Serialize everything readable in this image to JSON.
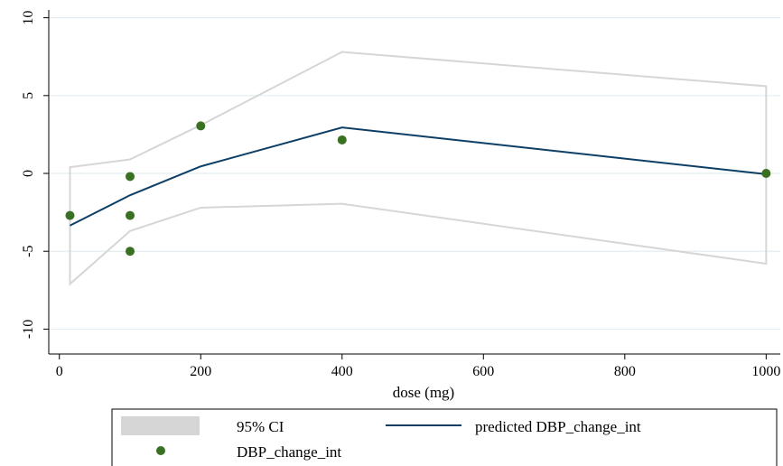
{
  "chart_data": {
    "type": "line",
    "xlabel": "dose (mg)",
    "ylabel": "",
    "xlim": [
      -15,
      1020
    ],
    "ylim": [
      -11.6,
      10.5
    ],
    "x_ticks": [
      "0",
      "200",
      "400",
      "600",
      "800",
      "1000"
    ],
    "x_tick_values": [
      0,
      200,
      400,
      600,
      800,
      1000
    ],
    "y_ticks": [
      "-10",
      "-5",
      "0",
      "5",
      "10"
    ],
    "y_tick_values": [
      -10,
      -5,
      0,
      5,
      10
    ],
    "grid": true,
    "legend_position": "bottom",
    "series": [
      {
        "name": "95% CI",
        "kind": "band",
        "color": "#d6d6d6",
        "x": [
          15,
          100,
          200,
          400,
          1000
        ],
        "upper": [
          0.4,
          0.9,
          3.1,
          7.8,
          5.6
        ],
        "lower": [
          -7.1,
          -3.7,
          -2.2,
          -1.95,
          -5.8
        ]
      },
      {
        "name": "predicted DBP_change_int",
        "kind": "line",
        "color": "#0d3f66",
        "x": [
          15,
          100,
          200,
          400,
          1000
        ],
        "y": [
          -3.35,
          -1.4,
          0.45,
          2.95,
          -0.05
        ]
      },
      {
        "name": "DBP_change_int",
        "kind": "scatter",
        "color": "#3a7021",
        "x": [
          15,
          100,
          100,
          100,
          200,
          400,
          1000
        ],
        "y": [
          -2.7,
          -0.2,
          -2.7,
          -5.0,
          3.05,
          2.15,
          0.0
        ]
      }
    ]
  },
  "legend": {
    "ci_label": "95% CI",
    "line_label": "predicted DBP_change_int",
    "points_label": "DBP_change_int"
  }
}
